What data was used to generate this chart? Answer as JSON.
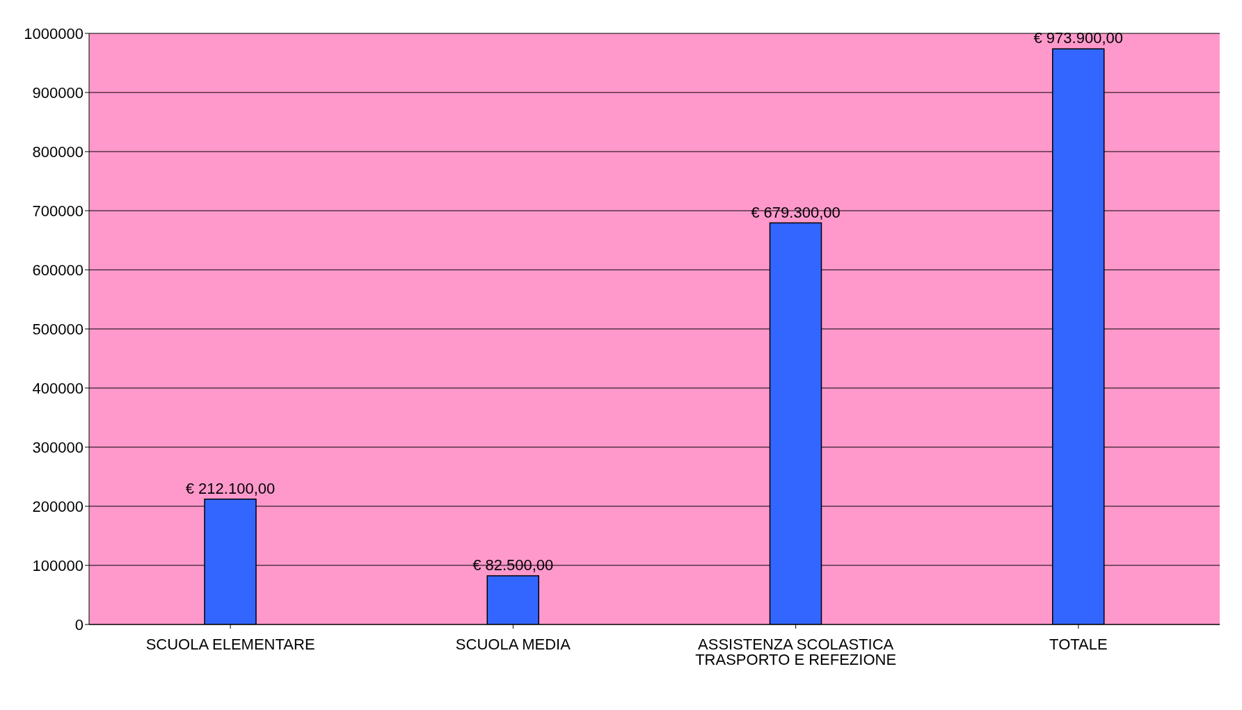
{
  "chart_data": {
    "type": "bar",
    "categories": [
      "SCUOLA ELEMENTARE",
      "SCUOLA MEDIA",
      "ASSISTENZA SCOLASTICA TRASPORTO E REFEZIONE",
      "TOTALE"
    ],
    "values": [
      212100,
      82500,
      679300,
      973900
    ],
    "value_labels": [
      "€ 212.100,00",
      "€ 82.500,00",
      "€ 679.300,00",
      "€ 973.900,00"
    ],
    "color": "#3366ff",
    "ylim": [
      0,
      1000000
    ],
    "yticks": [
      0,
      100000,
      200000,
      300000,
      400000,
      500000,
      600000,
      700000,
      800000,
      900000,
      1000000
    ],
    "grid": "y"
  }
}
